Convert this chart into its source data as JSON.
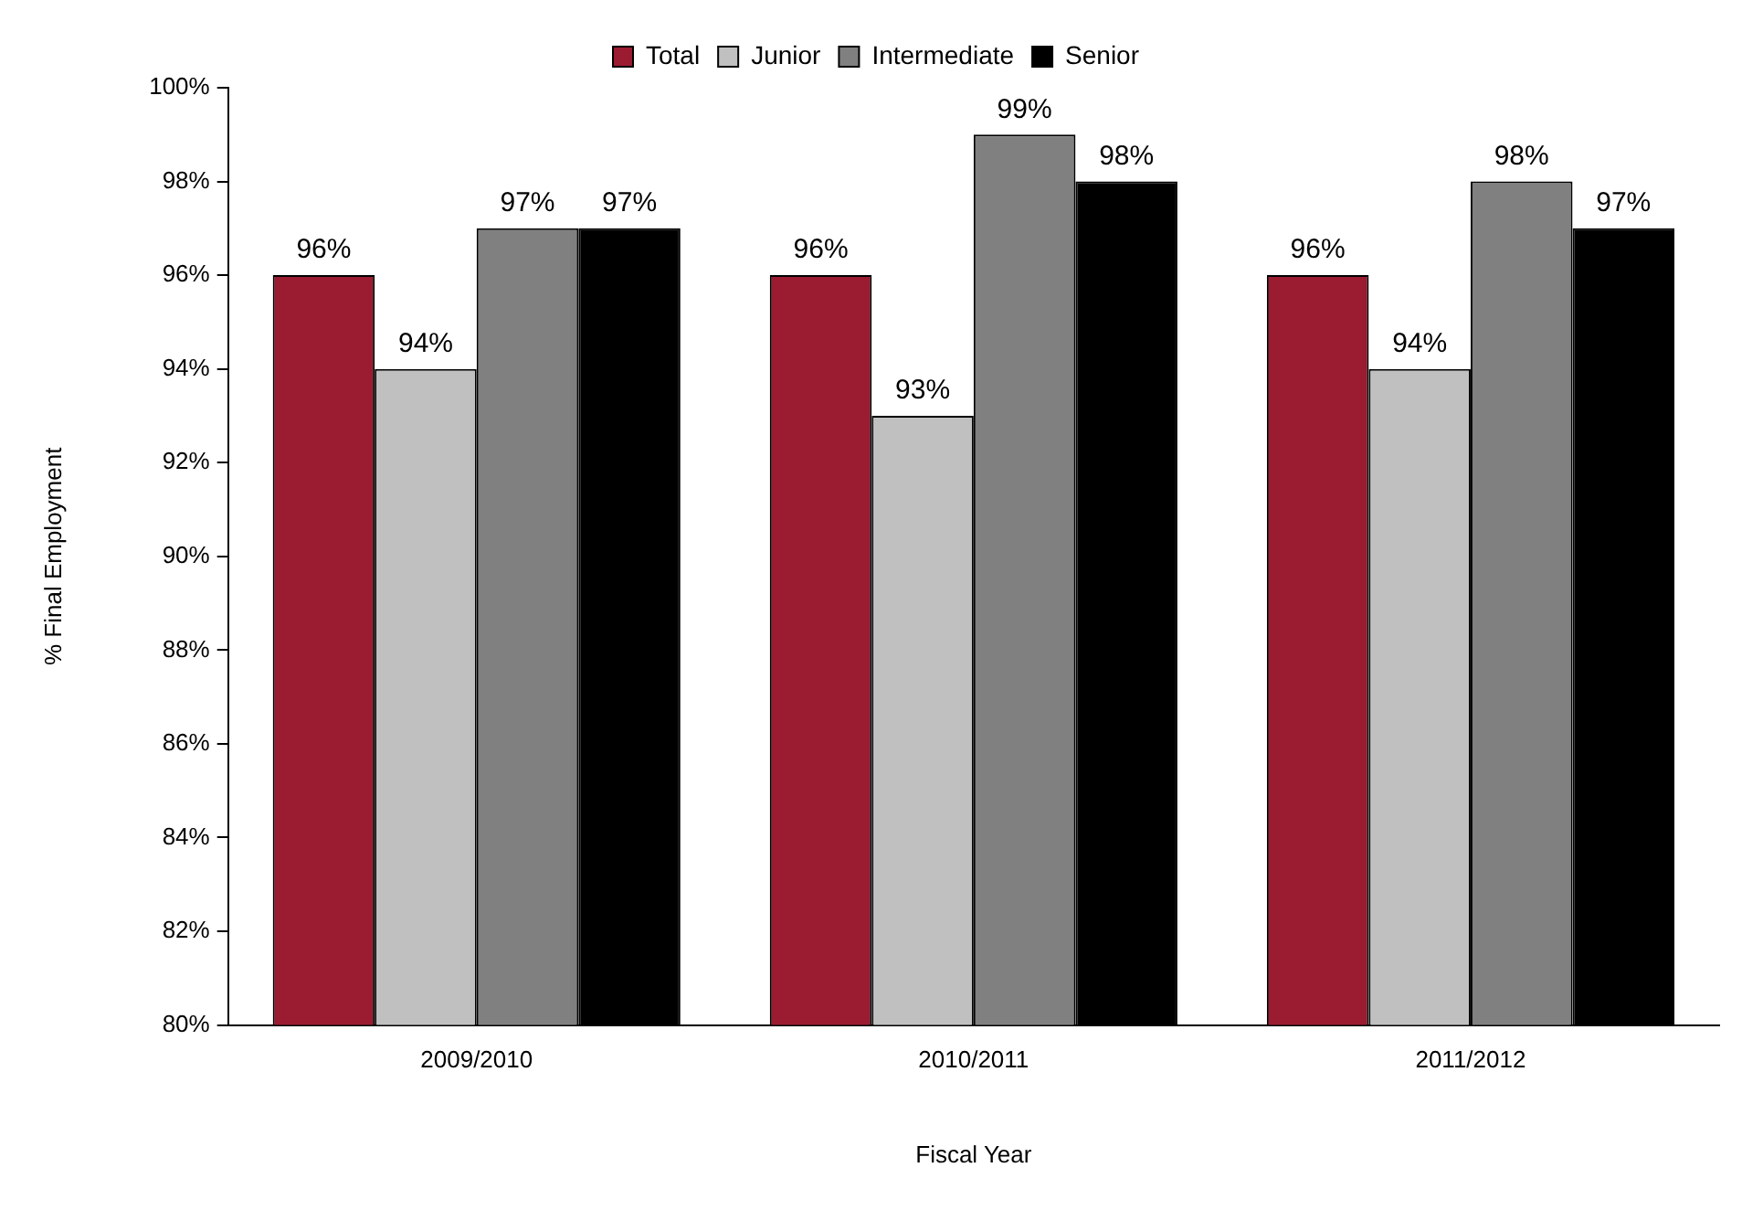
{
  "chart_data": {
    "type": "bar",
    "xlabel": "Fiscal Year",
    "ylabel": "% Final Employment",
    "categories": [
      "2009/2010",
      "2010/2011",
      "2011/2012"
    ],
    "series": [
      {
        "name": "Total",
        "color": "#9b1b30",
        "values": [
          96,
          96,
          96
        ],
        "value_labels": [
          "96%",
          "96%",
          "96%"
        ]
      },
      {
        "name": "Junior",
        "color": "#c0c0c0",
        "values": [
          94,
          93,
          94
        ],
        "value_labels": [
          "94%",
          "93%",
          "94%"
        ]
      },
      {
        "name": "Intermediate",
        "color": "#808080",
        "values": [
          97,
          99,
          98
        ],
        "value_labels": [
          "97%",
          "99%",
          "98%"
        ]
      },
      {
        "name": "Senior",
        "color": "#000000",
        "values": [
          97,
          98,
          97
        ],
        "value_labels": [
          "97%",
          "98%",
          "97%"
        ]
      }
    ],
    "ylim": [
      80,
      100
    ],
    "yticks": [
      {
        "value": 80,
        "label": "80%"
      },
      {
        "value": 82,
        "label": "82%"
      },
      {
        "value": 84,
        "label": "84%"
      },
      {
        "value": 86,
        "label": "86%"
      },
      {
        "value": 88,
        "label": "88%"
      },
      {
        "value": 90,
        "label": "90%"
      },
      {
        "value": 92,
        "label": "92%"
      },
      {
        "value": 94,
        "label": "94%"
      },
      {
        "value": 96,
        "label": "96%"
      },
      {
        "value": 98,
        "label": "98%"
      },
      {
        "value": 100,
        "label": "100%"
      }
    ],
    "grid": false,
    "legend": "top"
  }
}
